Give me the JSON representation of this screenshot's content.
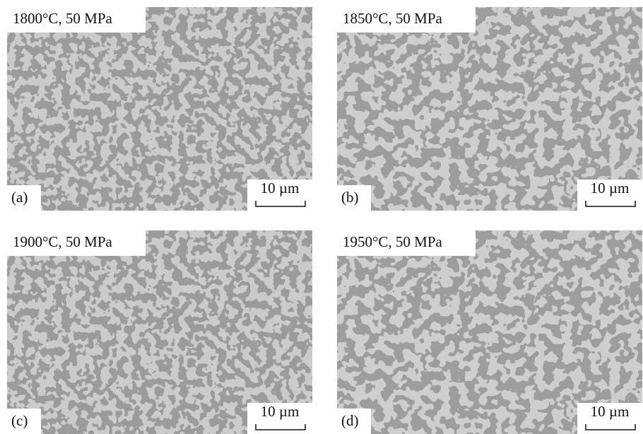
{
  "panels": [
    {
      "title": "1800°C, 50 MPa",
      "label": "(a)",
      "scale": "10 µm"
    },
    {
      "title": "1850°C, 50 MPa",
      "label": "(b)",
      "scale": "10 µm"
    },
    {
      "title": "1900°C, 50 MPa",
      "label": "(c)",
      "scale": "10 µm"
    },
    {
      "title": "1950°C, 50 MPa",
      "label": "(d)",
      "scale": "10 µm"
    }
  ]
}
